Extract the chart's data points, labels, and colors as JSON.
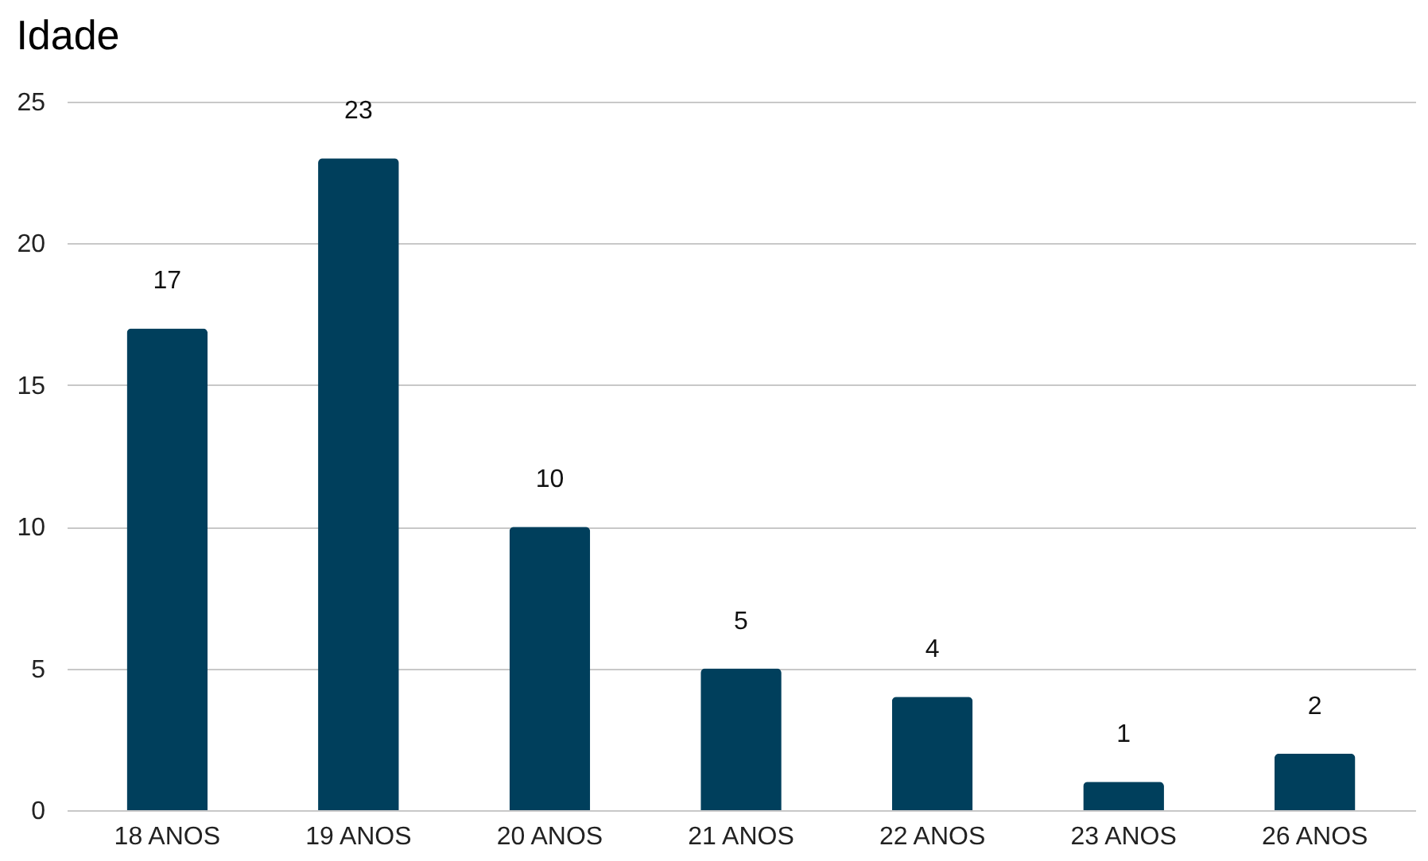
{
  "chart_data": {
    "type": "bar",
    "title": "Idade",
    "categories": [
      "18 ANOS",
      "19 ANOS",
      "20 ANOS",
      "21 ANOS",
      "22 ANOS",
      "23 ANOS",
      "26 ANOS"
    ],
    "values": [
      17,
      23,
      10,
      5,
      4,
      1,
      2
    ],
    "color": "#003f5c",
    "ylim": [
      0,
      25
    ],
    "yticks": [
      0,
      5,
      10,
      15,
      20,
      25
    ],
    "grid": "y",
    "data_labels": true
  }
}
